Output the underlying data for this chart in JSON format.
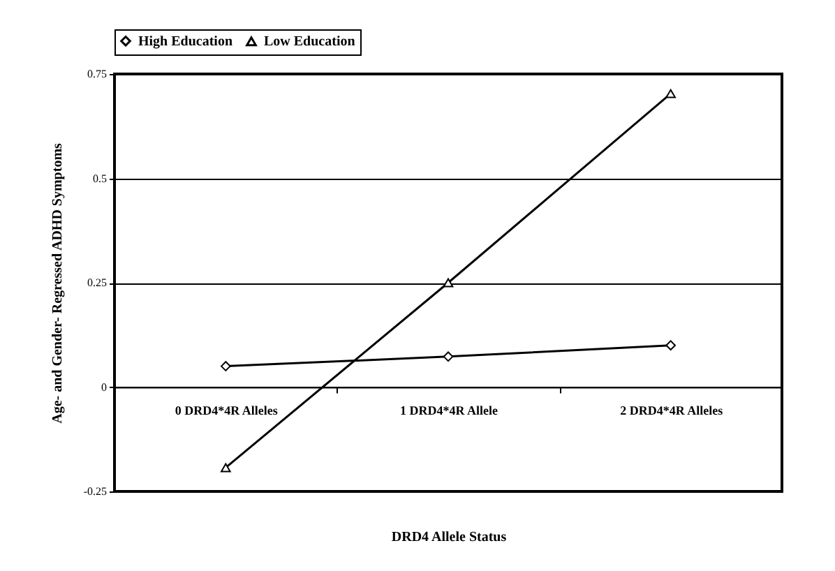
{
  "chart_data": {
    "type": "line",
    "xlabel": "DRD4 Allele Status",
    "ylabel": "Age- and Gender- Regressed ADHD Symptoms",
    "categories": [
      "0 DRD4*4R Alleles",
      "1 DRD4*4R Allele",
      "2 DRD4*4R Alleles"
    ],
    "series": [
      {
        "name": "High Education",
        "color": "#000000",
        "marker": "diamond",
        "values": [
          0.05,
          0.073,
          0.1
        ]
      },
      {
        "name": "Low Education",
        "color": "#000000",
        "marker": "triangle",
        "values": [
          -0.193,
          0.25,
          0.703
        ]
      }
    ],
    "ylim": [
      -0.25,
      0.75
    ],
    "yticks": [
      -0.25,
      0,
      0.25,
      0.5,
      0.75
    ],
    "grid": "y",
    "legend": "top"
  }
}
